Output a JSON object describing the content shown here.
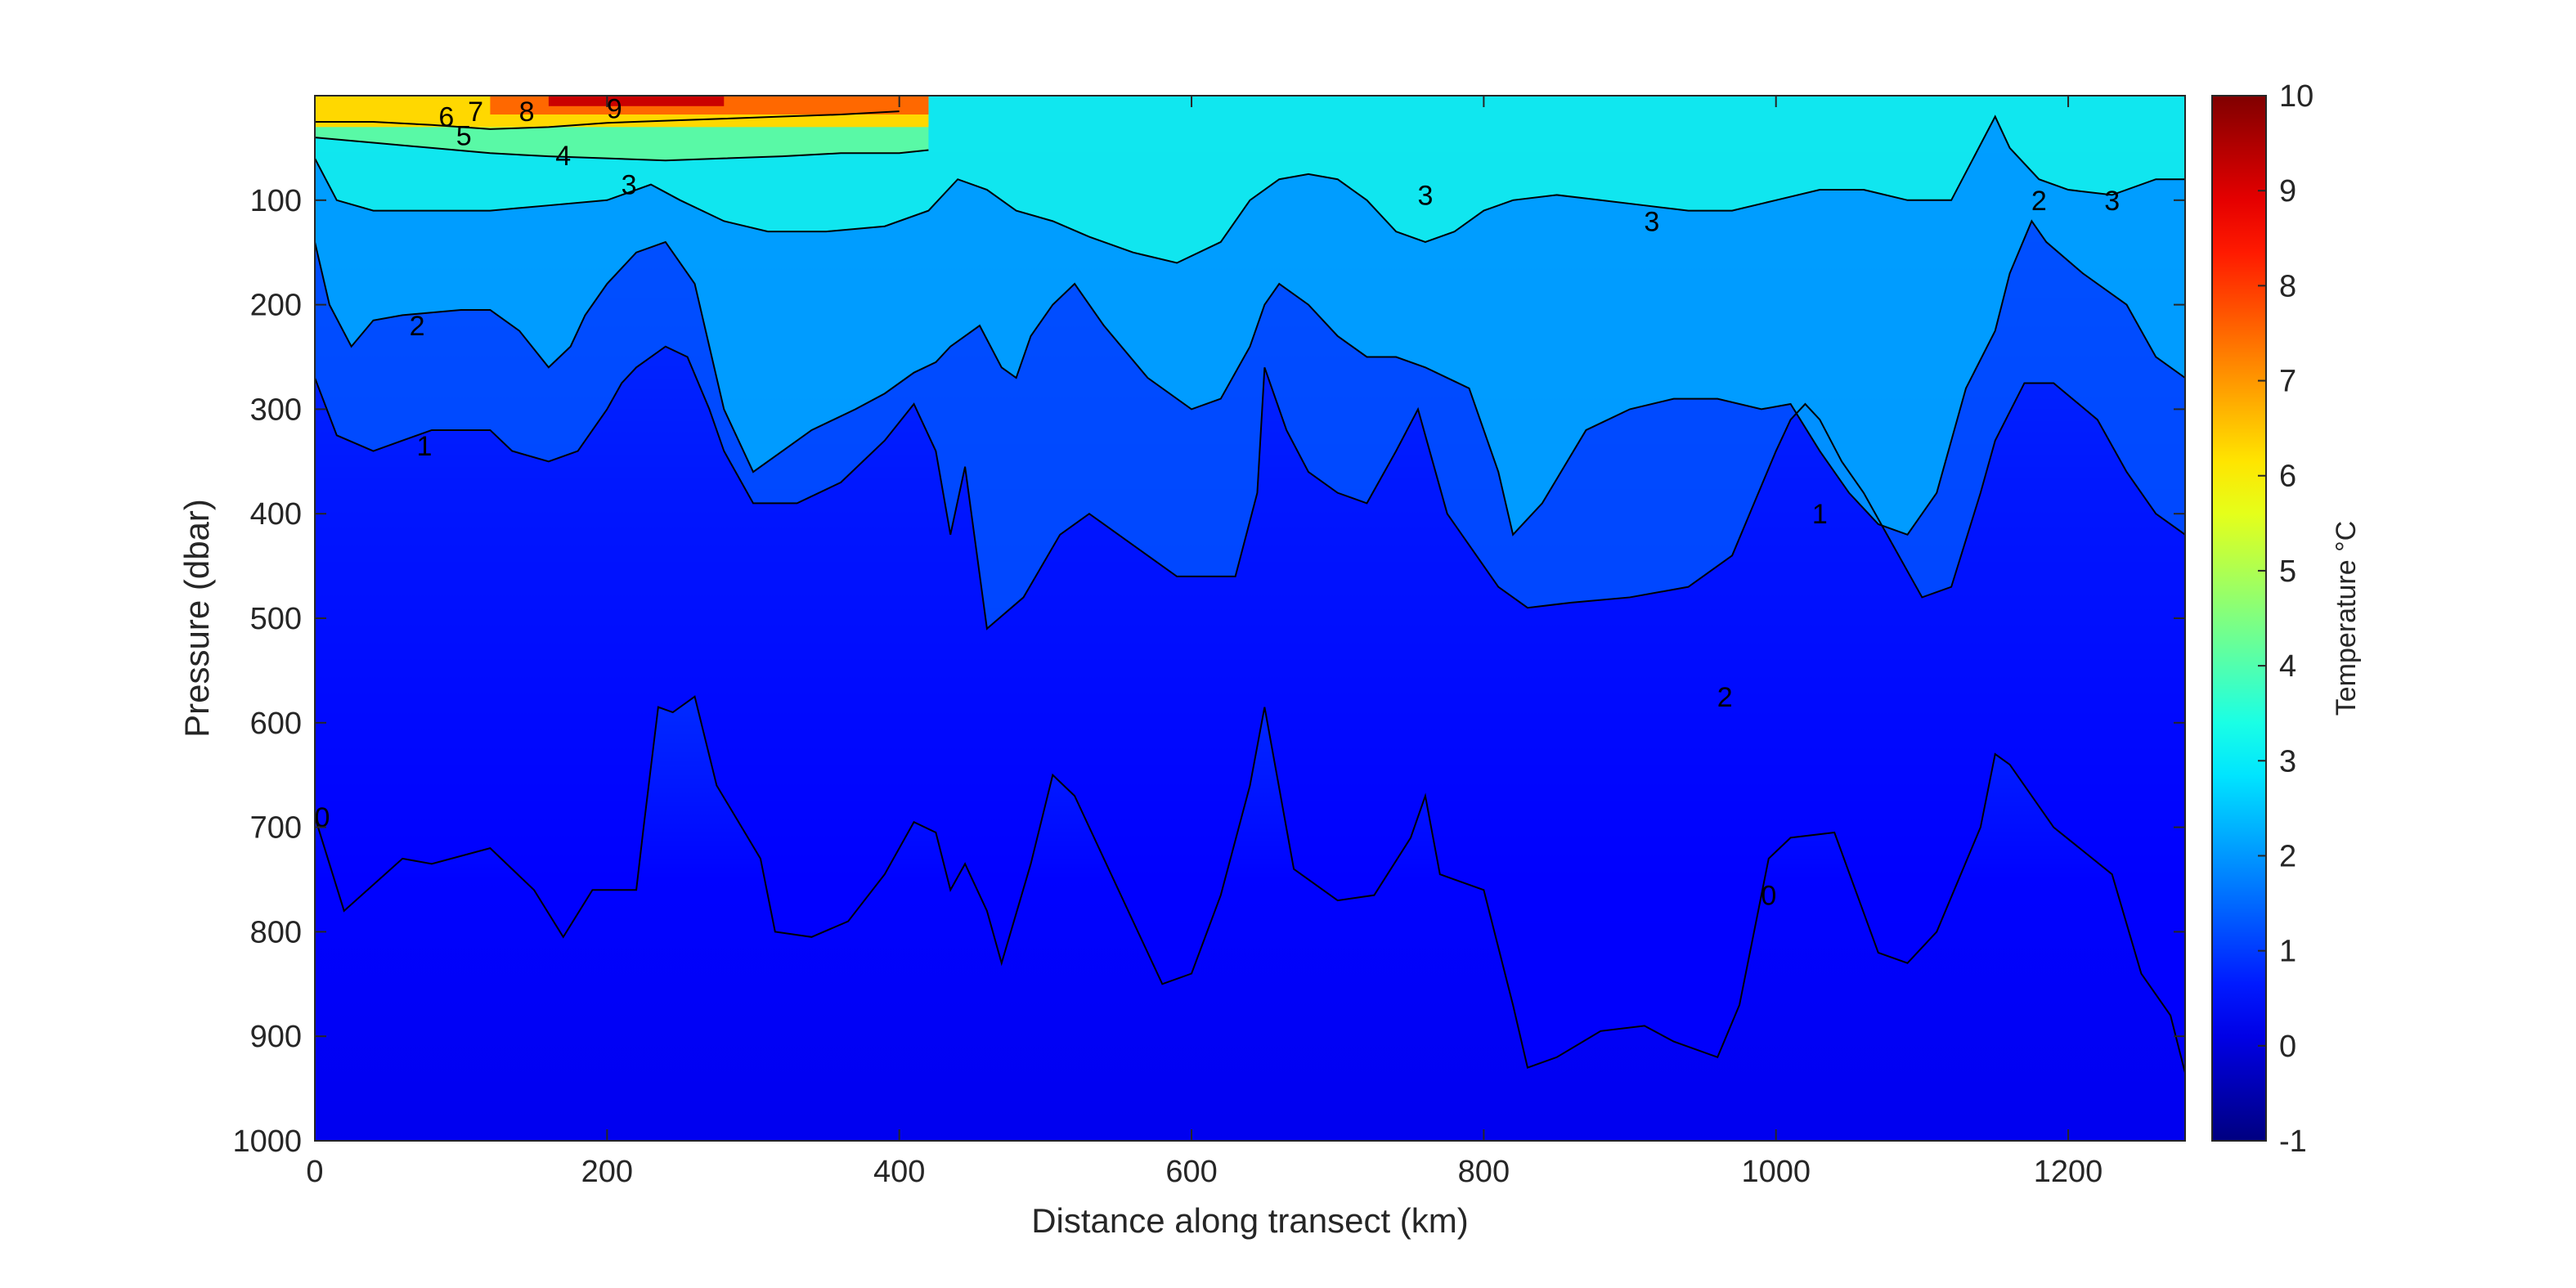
{
  "chart_data": {
    "type": "heatmap",
    "xlabel": "Distance along transect (km)",
    "ylabel": "Pressure (dbar)",
    "colorbar_label": "Temperature °C",
    "xlim": [
      0,
      1280
    ],
    "ylim": [
      0,
      1000
    ],
    "y_reversed": true,
    "x_ticks": [
      0,
      200,
      400,
      600,
      800,
      1000,
      1200
    ],
    "y_ticks": [
      100,
      200,
      300,
      400,
      500,
      600,
      700,
      800,
      900,
      1000
    ],
    "color_range": [
      -1,
      10
    ],
    "colorbar_ticks": [
      -1,
      0,
      1,
      2,
      3,
      4,
      5,
      6,
      7,
      8,
      9,
      10
    ],
    "colormap": "jet",
    "contours": [
      {
        "level": 0,
        "points": [
          [
            0,
            690
          ],
          [
            20,
            780
          ],
          [
            60,
            730
          ],
          [
            80,
            735
          ],
          [
            120,
            720
          ],
          [
            150,
            760
          ],
          [
            170,
            805
          ],
          [
            190,
            760
          ],
          [
            220,
            760
          ],
          [
            225,
            700
          ],
          [
            235,
            585
          ],
          [
            245,
            590
          ],
          [
            260,
            575
          ],
          [
            275,
            660
          ],
          [
            305,
            730
          ],
          [
            315,
            800
          ],
          [
            340,
            805
          ],
          [
            365,
            790
          ],
          [
            390,
            745
          ],
          [
            410,
            695
          ],
          [
            425,
            705
          ],
          [
            435,
            760
          ],
          [
            445,
            735
          ],
          [
            460,
            780
          ],
          [
            470,
            830
          ],
          [
            490,
            735
          ],
          [
            505,
            650
          ],
          [
            520,
            670
          ],
          [
            550,
            760
          ],
          [
            580,
            850
          ],
          [
            600,
            840
          ],
          [
            620,
            765
          ],
          [
            640,
            660
          ],
          [
            650,
            585
          ],
          [
            670,
            740
          ],
          [
            700,
            770
          ],
          [
            725,
            765
          ],
          [
            750,
            710
          ],
          [
            760,
            670
          ],
          [
            770,
            745
          ],
          [
            800,
            760
          ],
          [
            820,
            870
          ],
          [
            830,
            930
          ],
          [
            850,
            920
          ],
          [
            880,
            895
          ],
          [
            910,
            890
          ],
          [
            930,
            905
          ],
          [
            960,
            920
          ],
          [
            975,
            870
          ],
          [
            985,
            800
          ],
          [
            995,
            730
          ],
          [
            1010,
            710
          ],
          [
            1040,
            705
          ],
          [
            1070,
            820
          ],
          [
            1090,
            830
          ],
          [
            1110,
            800
          ],
          [
            1140,
            700
          ],
          [
            1150,
            630
          ],
          [
            1160,
            640
          ],
          [
            1190,
            700
          ],
          [
            1230,
            745
          ],
          [
            1250,
            840
          ],
          [
            1270,
            880
          ],
          [
            1280,
            935
          ]
        ]
      },
      {
        "level": 1,
        "points": [
          [
            0,
            270
          ],
          [
            15,
            325
          ],
          [
            40,
            340
          ],
          [
            60,
            330
          ],
          [
            80,
            320
          ],
          [
            120,
            320
          ],
          [
            135,
            340
          ],
          [
            160,
            350
          ],
          [
            180,
            340
          ],
          [
            200,
            300
          ],
          [
            210,
            275
          ],
          [
            220,
            260
          ],
          [
            240,
            240
          ],
          [
            255,
            250
          ],
          [
            270,
            300
          ],
          [
            280,
            340
          ],
          [
            300,
            390
          ],
          [
            330,
            390
          ],
          [
            360,
            370
          ],
          [
            390,
            330
          ],
          [
            410,
            295
          ],
          [
            425,
            340
          ],
          [
            435,
            420
          ],
          [
            445,
            355
          ],
          [
            460,
            510
          ],
          [
            485,
            480
          ],
          [
            510,
            420
          ],
          [
            530,
            400
          ],
          [
            560,
            430
          ],
          [
            590,
            460
          ],
          [
            610,
            460
          ],
          [
            630,
            460
          ],
          [
            645,
            380
          ],
          [
            650,
            260
          ],
          [
            665,
            320
          ],
          [
            680,
            360
          ],
          [
            700,
            380
          ],
          [
            720,
            390
          ],
          [
            740,
            340
          ],
          [
            755,
            300
          ],
          [
            765,
            350
          ],
          [
            775,
            400
          ],
          [
            790,
            430
          ],
          [
            810,
            470
          ],
          [
            830,
            490
          ],
          [
            860,
            485
          ],
          [
            900,
            480
          ],
          [
            940,
            470
          ],
          [
            970,
            440
          ],
          [
            985,
            390
          ],
          [
            1000,
            340
          ],
          [
            1010,
            310
          ],
          [
            1020,
            295
          ],
          [
            1030,
            310
          ],
          [
            1045,
            350
          ],
          [
            1060,
            380
          ],
          [
            1080,
            430
          ],
          [
            1100,
            480
          ],
          [
            1120,
            470
          ],
          [
            1140,
            380
          ],
          [
            1150,
            330
          ],
          [
            1170,
            275
          ],
          [
            1190,
            275
          ],
          [
            1220,
            310
          ],
          [
            1240,
            360
          ],
          [
            1260,
            400
          ],
          [
            1280,
            420
          ]
        ]
      },
      {
        "level": 2,
        "points": [
          [
            0,
            140
          ],
          [
            10,
            200
          ],
          [
            25,
            240
          ],
          [
            40,
            215
          ],
          [
            60,
            210
          ],
          [
            100,
            205
          ],
          [
            120,
            205
          ],
          [
            140,
            225
          ],
          [
            160,
            260
          ],
          [
            175,
            240
          ],
          [
            185,
            210
          ],
          [
            200,
            180
          ],
          [
            220,
            150
          ],
          [
            240,
            140
          ],
          [
            260,
            180
          ],
          [
            270,
            240
          ],
          [
            280,
            300
          ],
          [
            300,
            360
          ],
          [
            320,
            340
          ],
          [
            340,
            320
          ],
          [
            370,
            300
          ],
          [
            390,
            285
          ],
          [
            410,
            265
          ],
          [
            425,
            255
          ],
          [
            435,
            240
          ],
          [
            445,
            230
          ],
          [
            455,
            220
          ],
          [
            470,
            260
          ],
          [
            480,
            270
          ],
          [
            490,
            230
          ],
          [
            505,
            200
          ],
          [
            520,
            180
          ],
          [
            540,
            220
          ],
          [
            570,
            270
          ],
          [
            600,
            300
          ],
          [
            620,
            290
          ],
          [
            640,
            240
          ],
          [
            650,
            200
          ],
          [
            660,
            180
          ],
          [
            680,
            200
          ],
          [
            700,
            230
          ],
          [
            720,
            250
          ],
          [
            740,
            250
          ],
          [
            760,
            260
          ],
          [
            775,
            270
          ],
          [
            790,
            280
          ],
          [
            810,
            360
          ],
          [
            820,
            420
          ],
          [
            840,
            390
          ],
          [
            870,
            320
          ],
          [
            900,
            300
          ],
          [
            930,
            290
          ],
          [
            960,
            290
          ],
          [
            990,
            300
          ],
          [
            1010,
            295
          ],
          [
            1030,
            340
          ],
          [
            1050,
            380
          ],
          [
            1070,
            410
          ],
          [
            1090,
            420
          ],
          [
            1110,
            380
          ],
          [
            1130,
            280
          ],
          [
            1150,
            225
          ],
          [
            1160,
            170
          ],
          [
            1175,
            120
          ],
          [
            1185,
            140
          ],
          [
            1210,
            170
          ],
          [
            1240,
            200
          ],
          [
            1260,
            250
          ],
          [
            1280,
            270
          ]
        ]
      },
      {
        "level": 3,
        "points": [
          [
            0,
            60
          ],
          [
            15,
            100
          ],
          [
            40,
            110
          ],
          [
            80,
            110
          ],
          [
            120,
            110
          ],
          [
            160,
            105
          ],
          [
            200,
            100
          ],
          [
            230,
            85
          ],
          [
            250,
            100
          ],
          [
            280,
            120
          ],
          [
            310,
            130
          ],
          [
            350,
            130
          ],
          [
            390,
            125
          ],
          [
            420,
            110
          ],
          [
            440,
            80
          ],
          [
            460,
            90
          ],
          [
            480,
            110
          ],
          [
            505,
            120
          ],
          [
            530,
            135
          ],
          [
            560,
            150
          ],
          [
            590,
            160
          ],
          [
            620,
            140
          ],
          [
            640,
            100
          ],
          [
            660,
            80
          ],
          [
            680,
            75
          ],
          [
            700,
            80
          ],
          [
            720,
            100
          ],
          [
            740,
            130
          ],
          [
            760,
            140
          ],
          [
            780,
            130
          ],
          [
            800,
            110
          ],
          [
            820,
            100
          ],
          [
            850,
            95
          ],
          [
            880,
            100
          ],
          [
            910,
            105
          ],
          [
            940,
            110
          ],
          [
            970,
            110
          ],
          [
            1000,
            100
          ],
          [
            1030,
            90
          ],
          [
            1060,
            90
          ],
          [
            1090,
            100
          ],
          [
            1120,
            100
          ],
          [
            1150,
            20
          ],
          [
            1160,
            50
          ],
          [
            1180,
            80
          ],
          [
            1200,
            90
          ],
          [
            1230,
            95
          ],
          [
            1260,
            80
          ],
          [
            1280,
            80
          ]
        ]
      },
      {
        "level": 4,
        "points": [
          [
            0,
            40
          ],
          [
            40,
            45
          ],
          [
            80,
            50
          ],
          [
            120,
            55
          ],
          [
            160,
            58
          ],
          [
            200,
            60
          ],
          [
            240,
            62
          ],
          [
            280,
            60
          ],
          [
            320,
            58
          ],
          [
            360,
            55
          ],
          [
            400,
            55
          ],
          [
            420,
            52
          ]
        ]
      },
      {
        "level": 5,
        "points": [
          [
            0,
            25
          ],
          [
            40,
            25
          ],
          [
            80,
            28
          ],
          [
            120,
            32
          ],
          [
            160,
            30
          ],
          [
            200,
            26
          ],
          [
            240,
            24
          ],
          [
            280,
            22
          ],
          [
            320,
            20
          ],
          [
            360,
            18
          ],
          [
            400,
            15
          ]
        ]
      }
    ],
    "contour_labels": [
      {
        "text": "0",
        "x": 5,
        "y": 690
      },
      {
        "text": "0",
        "x": 995,
        "y": 765
      },
      {
        "text": "1",
        "x": 75,
        "y": 335
      },
      {
        "text": "1",
        "x": 1030,
        "y": 400
      },
      {
        "text": "2",
        "x": 70,
        "y": 220
      },
      {
        "text": "2",
        "x": 965,
        "y": 575
      },
      {
        "text": "2",
        "x": 1180,
        "y": 100
      },
      {
        "text": "3",
        "x": 215,
        "y": 85
      },
      {
        "text": "3",
        "x": 760,
        "y": 95
      },
      {
        "text": "3",
        "x": 915,
        "y": 120
      },
      {
        "text": "3",
        "x": 1230,
        "y": 100
      },
      {
        "text": "4",
        "x": 170,
        "y": 57
      },
      {
        "text": "5",
        "x": 102,
        "y": 38
      },
      {
        "text": "6",
        "x": 90,
        "y": 20
      },
      {
        "text": "7",
        "x": 110,
        "y": 15
      },
      {
        "text": "8",
        "x": 145,
        "y": 15
      },
      {
        "text": "9",
        "x": 205,
        "y": 12
      }
    ]
  }
}
